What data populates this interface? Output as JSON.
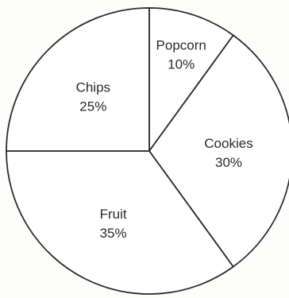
{
  "chart_data": {
    "type": "pie",
    "slices": [
      {
        "label": "Popcorn",
        "value": 10,
        "value_label": "10%"
      },
      {
        "label": "Cookies",
        "value": 30,
        "value_label": "30%"
      },
      {
        "label": "Fruit",
        "value": 35,
        "value_label": "35%"
      },
      {
        "label": "Chips",
        "value": 25,
        "value_label": "25%"
      }
    ],
    "start_angle_deg": 0,
    "direction": "clockwise",
    "legend": "none"
  }
}
